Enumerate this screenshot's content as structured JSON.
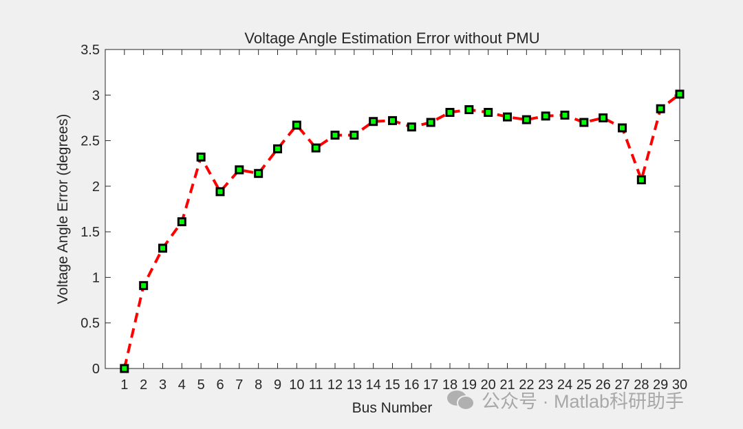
{
  "chart_data": {
    "type": "line",
    "title": "Voltage Angle Estimation Error without PMU",
    "xlabel": "Bus Number",
    "ylabel": "Voltage Angle Error (degrees)",
    "x": [
      1,
      2,
      3,
      4,
      5,
      6,
      7,
      8,
      9,
      10,
      11,
      12,
      13,
      14,
      15,
      16,
      17,
      18,
      19,
      20,
      21,
      22,
      23,
      24,
      25,
      26,
      27,
      28,
      29,
      30
    ],
    "series": [
      {
        "name": "Voltage Angle Error",
        "values": [
          0,
          0.91,
          1.32,
          1.61,
          2.32,
          1.94,
          2.18,
          2.14,
          2.41,
          2.67,
          2.42,
          2.56,
          2.56,
          2.71,
          2.72,
          2.65,
          2.7,
          2.81,
          2.84,
          2.81,
          2.76,
          2.73,
          2.77,
          2.78,
          2.7,
          2.75,
          2.64,
          2.07,
          2.85,
          3.01
        ],
        "line_color": "#ff0000",
        "line_style": "dashed",
        "marker": "square",
        "marker_face": "#00ff00",
        "marker_edge": "#000000"
      }
    ],
    "xlim": [
      0,
      30
    ],
    "ylim": [
      0,
      3.5
    ],
    "yticks": [
      "0",
      "0.5",
      "1",
      "1.5",
      "2",
      "2.5",
      "3",
      "3.5"
    ],
    "xticks": [
      "1",
      "2",
      "3",
      "4",
      "5",
      "6",
      "7",
      "8",
      "9",
      "10",
      "11",
      "12",
      "13",
      "14",
      "15",
      "16",
      "17",
      "18",
      "19",
      "20",
      "21",
      "22",
      "23",
      "24",
      "25",
      "26",
      "27",
      "28",
      "29",
      "30"
    ],
    "grid": false,
    "legend": null
  },
  "watermark": {
    "text": "公众号 · Matlab科研助手"
  }
}
